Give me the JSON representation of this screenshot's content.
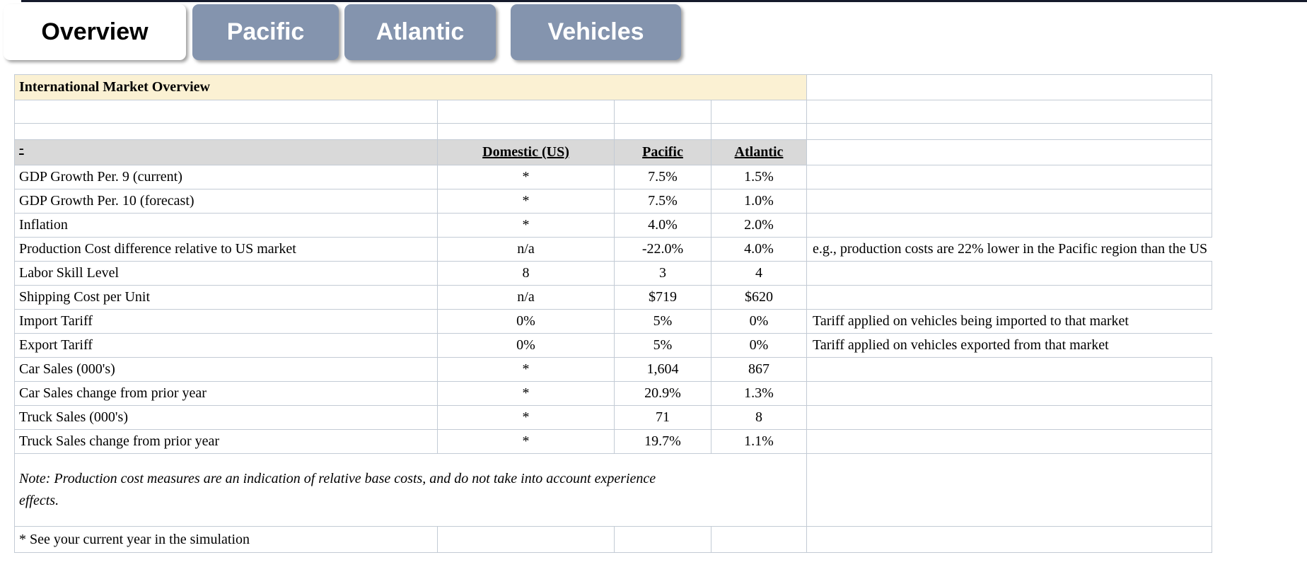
{
  "tabs": [
    {
      "label": "Overview",
      "active": true
    },
    {
      "label": "Pacific",
      "active": false
    },
    {
      "label": "Atlantic",
      "active": false
    },
    {
      "label": "Vehicles",
      "active": false
    }
  ],
  "table": {
    "title": "International Market Overview",
    "columns": [
      "-",
      "Domestic (US)",
      "Pacific",
      "Atlantic"
    ],
    "rows": [
      {
        "label": "GDP Growth Per. 9 (current)",
        "domestic": "*",
        "pacific": "7.5%",
        "atlantic": "1.5%",
        "note": ""
      },
      {
        "label": "GDP Growth Per. 10 (forecast)",
        "domestic": "*",
        "pacific": "7.5%",
        "atlantic": "1.0%",
        "note": ""
      },
      {
        "label": "Inflation",
        "domestic": "*",
        "pacific": "4.0%",
        "atlantic": "2.0%",
        "note": ""
      },
      {
        "label": "Production Cost difference relative to US market",
        "domestic": "n/a",
        "pacific": "-22.0%",
        "atlantic": "4.0%",
        "note": "e.g., production costs are 22% lower in the Pacific region than the US"
      },
      {
        "label": "Labor Skill Level",
        "domestic": "8",
        "pacific": "3",
        "atlantic": "4",
        "note": ""
      },
      {
        "label": "Shipping Cost per Unit",
        "domestic": "n/a",
        "pacific": "$719",
        "atlantic": "$620",
        "note": ""
      },
      {
        "label": "Import Tariff",
        "domestic": "0%",
        "pacific": "5%",
        "atlantic": "0%",
        "note": "Tariff applied on vehicles being imported to that market"
      },
      {
        "label": "Export Tariff",
        "domestic": "0%",
        "pacific": "5%",
        "atlantic": "0%",
        "note": "Tariff applied on vehicles exported from that market"
      },
      {
        "label": "Car Sales (000's)",
        "domestic": "*",
        "pacific": "1,604",
        "atlantic": "867",
        "note": ""
      },
      {
        "label": "Car Sales change from prior year",
        "domestic": "*",
        "pacific": "20.9%",
        "atlantic": "1.3%",
        "note": ""
      },
      {
        "label": "Truck Sales (000's)",
        "domestic": "*",
        "pacific": "71",
        "atlantic": "8",
        "note": ""
      },
      {
        "label": "Truck Sales change from prior year",
        "domestic": "*",
        "pacific": "19.7%",
        "atlantic": "1.1%",
        "note": ""
      }
    ],
    "footnote_italic": "Note: Production cost measures are an indication  of relative base costs, and do not take into account experience effects.",
    "footnote": "* See your current year in the simulation"
  },
  "colors": {
    "tab_inactive": "#8494ae",
    "tab_active": "#ffffff",
    "title_bg": "#fbf1d3",
    "header_bg": "#d9d9d9",
    "border": "#c3cbd5",
    "top_bar": "#151a2b"
  }
}
